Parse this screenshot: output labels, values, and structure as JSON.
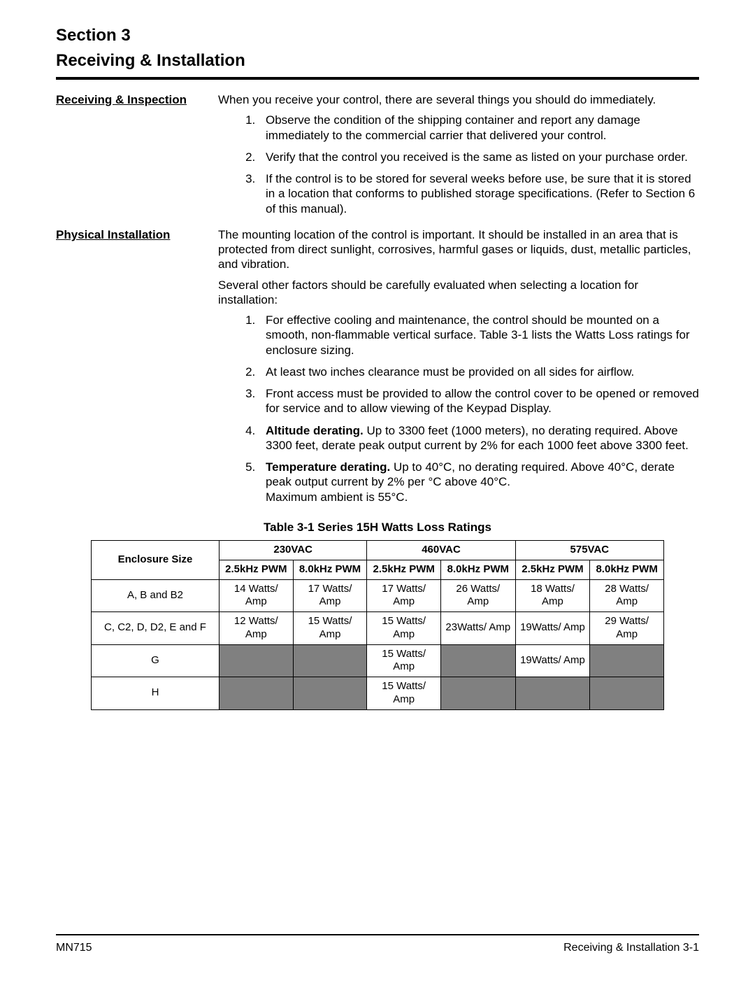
{
  "header": {
    "line1": "Section 3",
    "line2": "Receiving & Installation"
  },
  "receiving": {
    "heading": "Receiving & Inspection",
    "intro": "When you receive your control, there are several things you should do immediately.",
    "items": [
      "Observe the condition of the shipping container and report any damage immediately to the commercial carrier that delivered your control.",
      "Verify that the control you received is the same as listed on your purchase order.",
      "If the control is to be stored for several weeks before use, be sure that it is stored in a location that conforms to published storage specifications. (Refer to Section 6 of this manual)."
    ]
  },
  "physical": {
    "heading": "Physical Installation",
    "p1": "The mounting location of the control is important.  It should be installed in an area that is protected from direct sunlight, corrosives, harmful gases or liquids, dust, metallic particles, and vibration.",
    "p2": "Several other factors should be carefully evaluated when selecting a location for installation:",
    "items": [
      {
        "bold": "",
        "text": "For effective cooling and maintenance, the control should be mounted on a smooth, non-flammable vertical surface.  Table 3-1 lists the Watts Loss ratings for enclosure sizing."
      },
      {
        "bold": "",
        "text": "At least two inches clearance must be provided on all sides for airflow."
      },
      {
        "bold": "",
        "text": "Front access must be provided to allow the control cover to be opened or removed for service and to allow viewing of the Keypad Display."
      },
      {
        "bold": "Altitude derating.",
        "text": "  Up to 3300 feet (1000 meters), no derating required.  Above 3300 feet, derate peak output current by 2% for each 1000 feet above 3300 feet."
      },
      {
        "bold": "Temperature derating.",
        "text": "  Up to 40°C, no derating required.  Above 40°C, derate peak output current by 2% per °C above 40°C.\nMaximum ambient is 55°C."
      }
    ]
  },
  "table": {
    "title": "Table 3-1  Series 15H Watts Loss Ratings",
    "columns": {
      "enc": "Enclosure Size",
      "groups": [
        "230VAC",
        "460VAC",
        "575VAC"
      ],
      "subs": [
        "2.5kHz PWM",
        "8.0kHz PWM",
        "2.5kHz PWM",
        "8.0kHz PWM",
        "2.5kHz PWM",
        "8.0kHz PWM"
      ]
    },
    "rows": [
      {
        "enc": "A, B and B2",
        "cells": [
          "14 Watts/ Amp",
          "17 Watts/ Amp",
          "17 Watts/ Amp",
          "26 Watts/ Amp",
          "18 Watts/ Amp",
          "28 Watts/ Amp"
        ],
        "shaded": [
          false,
          false,
          false,
          false,
          false,
          false
        ]
      },
      {
        "enc": "C, C2, D, D2, E and F",
        "cells": [
          "12 Watts/ Amp",
          "15 Watts/ Amp",
          "15 Watts/ Amp",
          "23Watts/ Amp",
          "19Watts/ Amp",
          "29 Watts/ Amp"
        ],
        "shaded": [
          false,
          false,
          false,
          false,
          false,
          false
        ]
      },
      {
        "enc": "G",
        "cells": [
          "",
          "",
          "15 Watts/ Amp",
          "",
          "19Watts/ Amp",
          ""
        ],
        "shaded": [
          true,
          true,
          false,
          true,
          false,
          true
        ]
      },
      {
        "enc": "H",
        "cells": [
          "",
          "",
          "15 Watts/ Amp",
          "",
          "",
          ""
        ],
        "shaded": [
          true,
          true,
          false,
          true,
          true,
          true
        ]
      }
    ]
  },
  "footer": {
    "left": "MN715",
    "right": "Receiving & Installation 3-1"
  }
}
